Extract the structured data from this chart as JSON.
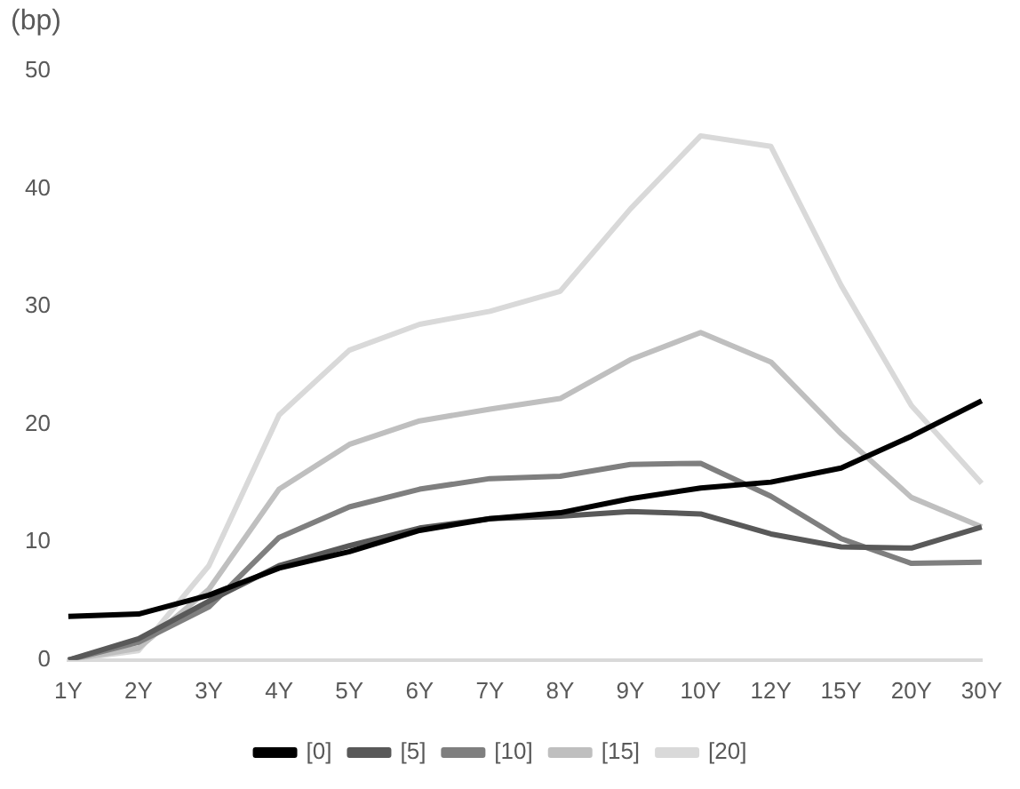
{
  "chart_data": {
    "type": "line",
    "ylabel": "(bp)",
    "categories": [
      "1Y",
      "2Y",
      "3Y",
      "4Y",
      "5Y",
      "6Y",
      "7Y",
      "8Y",
      "9Y",
      "10Y",
      "12Y",
      "15Y",
      "20Y",
      "30Y"
    ],
    "series": [
      {
        "name": "[0]",
        "color": "#000000",
        "values": [
          3.7,
          3.9,
          5.5,
          7.8,
          9.2,
          11,
          12,
          12.5,
          13.7,
          14.6,
          15.1,
          16.3,
          19,
          22
        ]
      },
      {
        "name": "[5]",
        "color": "#595959",
        "values": [
          0,
          1.8,
          5,
          8,
          9.7,
          11.2,
          12,
          12.2,
          12.6,
          12.4,
          10.7,
          9.6,
          9.5,
          11.3
        ]
      },
      {
        "name": "[10]",
        "color": "#7f7f7f",
        "values": [
          0,
          1.5,
          4.5,
          10.4,
          13,
          14.5,
          15.4,
          15.6,
          16.6,
          16.7,
          13.9,
          10.3,
          8.2,
          8.3
        ]
      },
      {
        "name": "[15]",
        "color": "#bfbfbf",
        "values": [
          0,
          1,
          6,
          14.5,
          18.3,
          20.3,
          21.3,
          22.2,
          25.5,
          27.8,
          25.3,
          19.2,
          13.8,
          11.3
        ]
      },
      {
        "name": "[20]",
        "color": "#d9d9d9",
        "values": [
          0,
          0.8,
          8,
          20.8,
          26.3,
          28.5,
          29.6,
          31.3,
          38.3,
          44.5,
          43.6,
          31.8,
          21.6,
          15
        ]
      }
    ],
    "ylim": [
      0,
      50
    ],
    "yticks": [
      0,
      10,
      20,
      30,
      40,
      50
    ],
    "grid": false,
    "legend": "bottom",
    "marker": "none",
    "line_style": "solid"
  }
}
